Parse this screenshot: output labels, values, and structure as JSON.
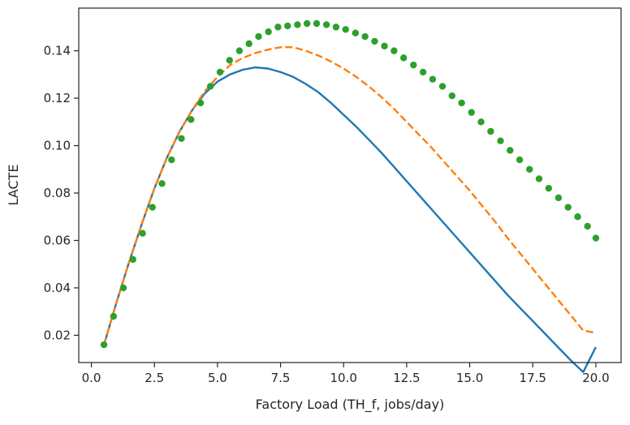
{
  "chart_data": {
    "type": "line",
    "title": "",
    "xlabel": "Factory Load (TH_f, jobs/day)",
    "ylabel": "LACTE",
    "xlim": [
      -0.5,
      21.0
    ],
    "ylim": [
      0.0085,
      0.158
    ],
    "xticks": [
      0.0,
      2.5,
      5.0,
      7.5,
      10.0,
      12.5,
      15.0,
      17.5,
      20.0
    ],
    "xtick_labels": [
      "0.0",
      "2.5",
      "5.0",
      "7.5",
      "10.0",
      "12.5",
      "15.0",
      "17.5",
      "20.0"
    ],
    "yticks": [
      0.02,
      0.04,
      0.06,
      0.08,
      0.1,
      0.12,
      0.14
    ],
    "ytick_labels": [
      "0.02",
      "0.04",
      "0.06",
      "0.08",
      "0.10",
      "0.12",
      "0.14"
    ],
    "grid": false,
    "legend": "none",
    "series": [
      {
        "style": "solid",
        "color": "#1f77b4",
        "x": [
          0.5,
          1.0,
          1.5,
          2.0,
          2.5,
          3.0,
          3.5,
          4.0,
          4.5,
          5.0,
          5.5,
          6.0,
          6.5,
          7.0,
          7.5,
          8.0,
          8.5,
          9.0,
          9.5,
          10.0,
          10.5,
          11.0,
          11.5,
          12.0,
          12.5,
          13.0,
          13.5,
          14.0,
          14.5,
          15.0,
          15.5,
          16.0,
          16.5,
          17.0,
          17.5,
          18.0,
          18.5,
          19.0,
          19.5,
          20.0
        ],
        "y": [
          0.016,
          0.034,
          0.051,
          0.067,
          0.082,
          0.095,
          0.106,
          0.115,
          0.122,
          0.127,
          0.13,
          0.132,
          0.133,
          0.1325,
          0.131,
          0.129,
          0.126,
          0.1225,
          0.118,
          0.113,
          0.108,
          0.1025,
          0.097,
          0.091,
          0.085,
          0.079,
          0.073,
          0.067,
          0.061,
          0.055,
          0.049,
          0.043,
          0.037,
          0.0315,
          0.026,
          0.0205,
          0.015,
          0.0095,
          0.0045,
          0.015
        ]
      },
      {
        "style": "dashed",
        "color": "#ff7f0e",
        "x": [
          0.5,
          1.0,
          1.5,
          2.0,
          2.5,
          3.0,
          3.5,
          4.0,
          4.5,
          5.0,
          5.5,
          6.0,
          6.5,
          7.0,
          7.5,
          8.0,
          8.5,
          9.0,
          9.5,
          10.0,
          10.5,
          11.0,
          11.5,
          12.0,
          12.5,
          13.0,
          13.5,
          14.0,
          14.5,
          15.0,
          15.5,
          16.0,
          16.5,
          17.0,
          17.5,
          18.0,
          18.5,
          19.0,
          19.5,
          20.0
        ],
        "y": [
          0.016,
          0.034,
          0.051,
          0.067,
          0.082,
          0.095,
          0.106,
          0.115,
          0.123,
          0.129,
          0.134,
          0.137,
          0.139,
          0.1405,
          0.1415,
          0.1415,
          0.14,
          0.138,
          0.1355,
          0.1325,
          0.129,
          0.125,
          0.1205,
          0.1155,
          0.11,
          0.1045,
          0.099,
          0.093,
          0.087,
          0.081,
          0.0745,
          0.068,
          0.061,
          0.0545,
          0.048,
          0.0415,
          0.035,
          0.0285,
          0.022,
          0.021
        ]
      },
      {
        "style": "dotted",
        "color": "#2ca02c",
        "x": [
          0.5,
          0.88,
          1.27,
          1.65,
          2.03,
          2.42,
          2.8,
          3.18,
          3.57,
          3.95,
          4.33,
          4.72,
          5.1,
          5.48,
          5.87,
          6.25,
          6.63,
          7.02,
          7.4,
          7.78,
          8.17,
          8.55,
          8.93,
          9.32,
          9.7,
          10.08,
          10.47,
          10.85,
          11.23,
          11.62,
          12.0,
          12.38,
          12.77,
          13.15,
          13.53,
          13.92,
          14.3,
          14.68,
          15.07,
          15.45,
          15.83,
          16.22,
          16.6,
          16.98,
          17.37,
          17.75,
          18.13,
          18.52,
          18.9,
          19.28,
          19.67,
          20.0
        ],
        "y": [
          0.016,
          0.028,
          0.04,
          0.052,
          0.063,
          0.074,
          0.084,
          0.094,
          0.103,
          0.111,
          0.118,
          0.125,
          0.131,
          0.136,
          0.14,
          0.143,
          0.146,
          0.148,
          0.15,
          0.1505,
          0.151,
          0.1515,
          0.1515,
          0.151,
          0.15,
          0.149,
          0.1475,
          0.146,
          0.144,
          0.142,
          0.14,
          0.137,
          0.134,
          0.131,
          0.128,
          0.125,
          0.121,
          0.118,
          0.114,
          0.11,
          0.106,
          0.102,
          0.098,
          0.094,
          0.09,
          0.086,
          0.082,
          0.078,
          0.074,
          0.07,
          0.066,
          0.061
        ]
      }
    ]
  }
}
